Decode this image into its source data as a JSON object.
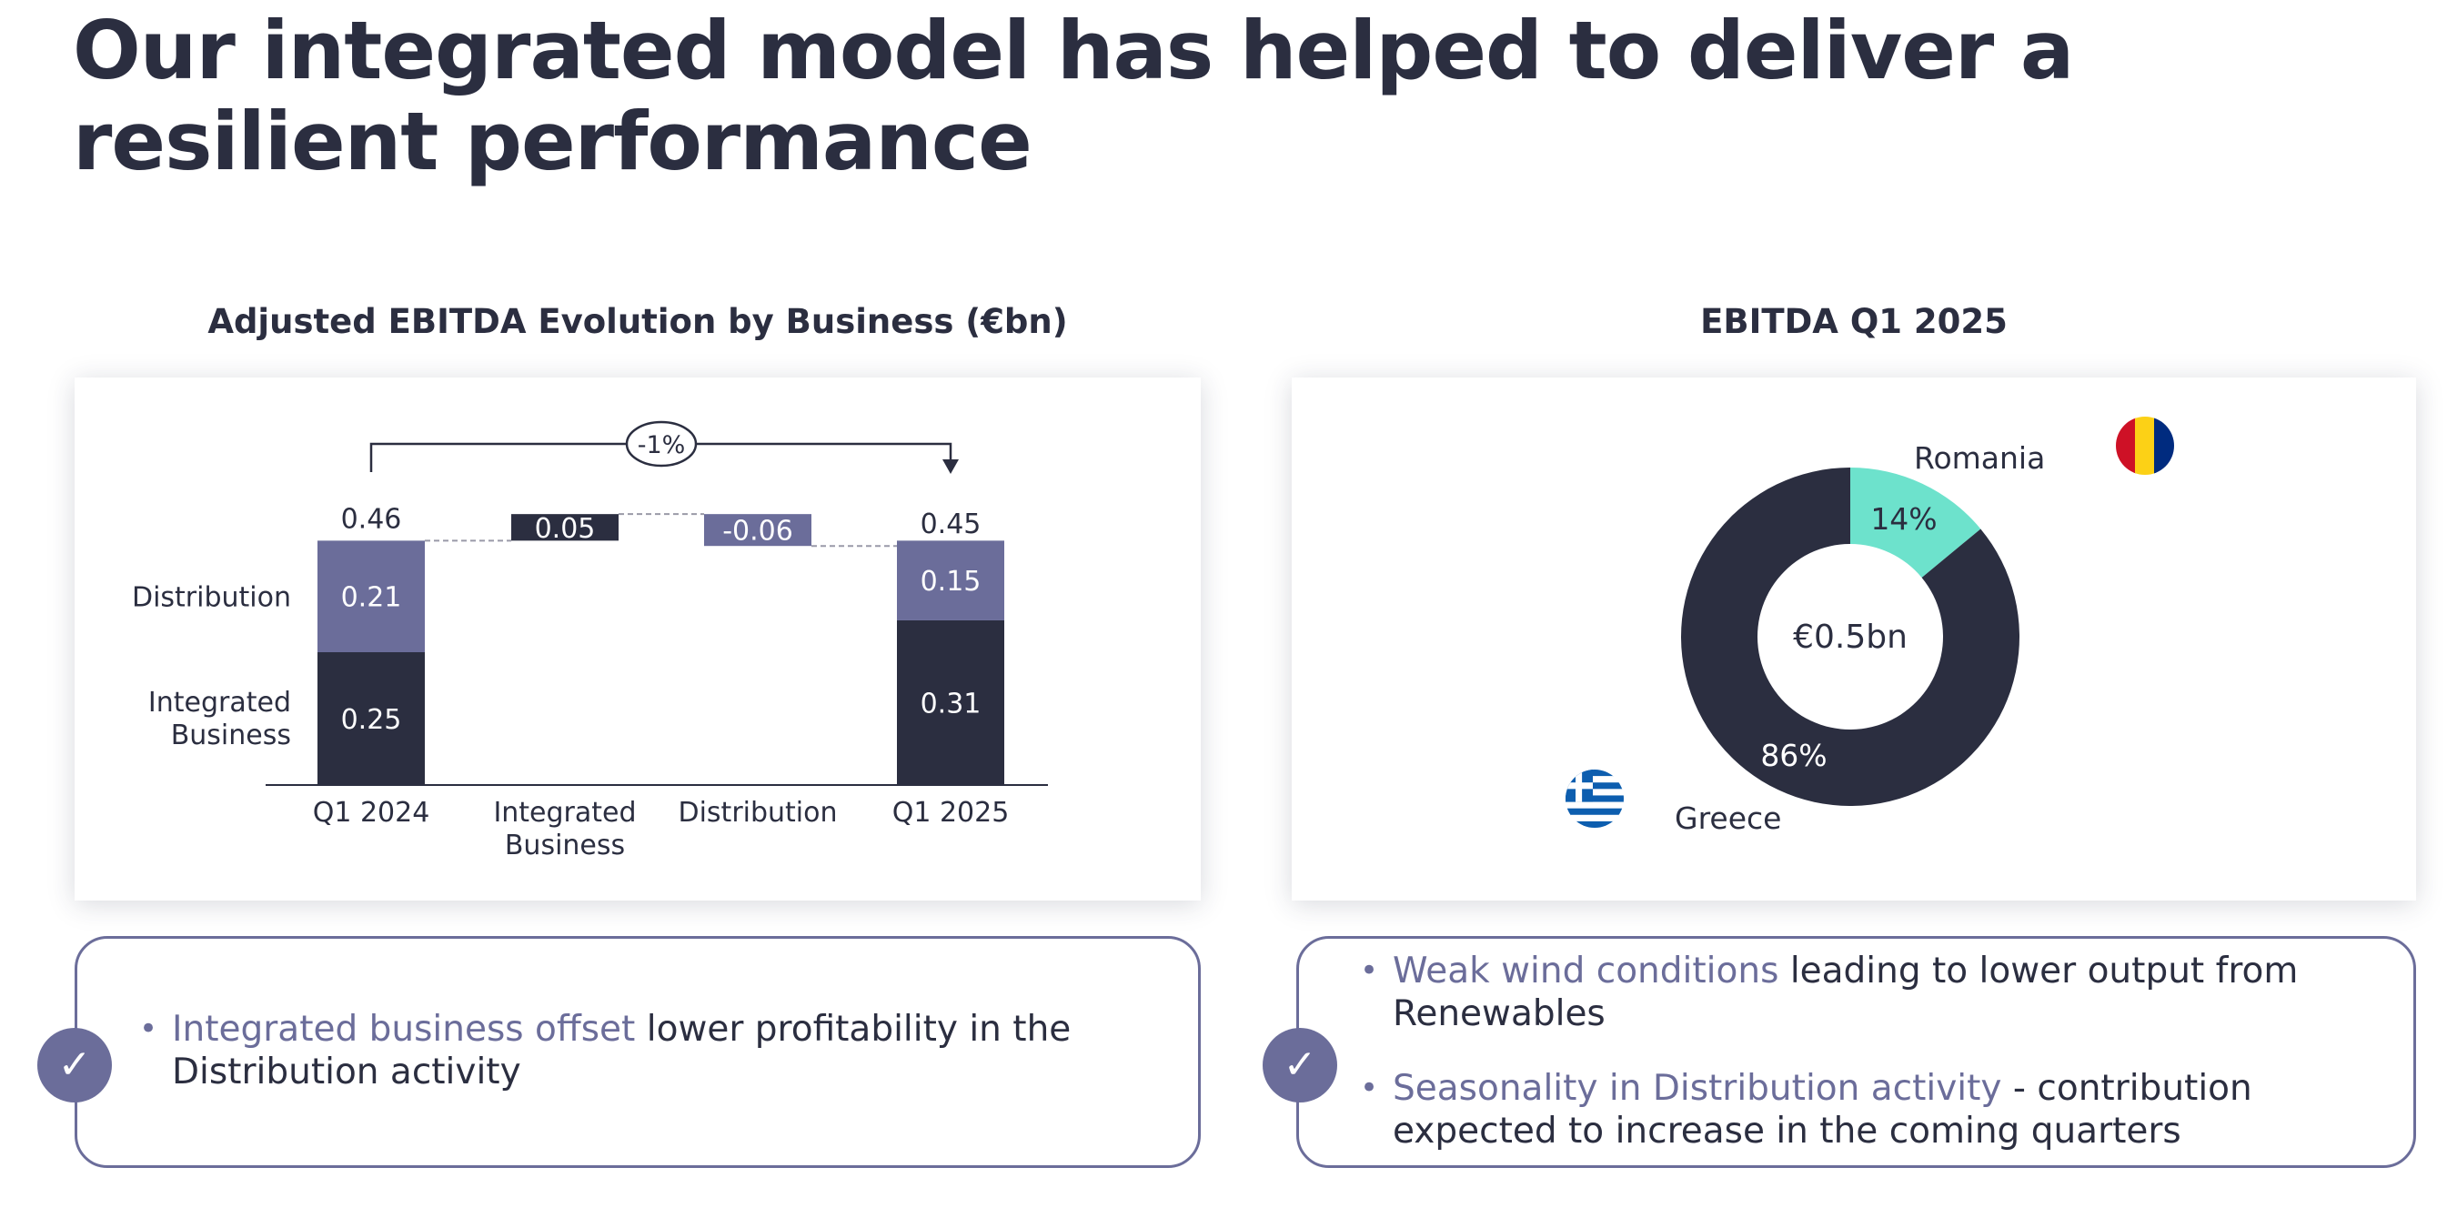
{
  "page": {
    "title": "Our integrated model has helped to deliver a resilient performance"
  },
  "left_section": {
    "title": "Adjusted EBITDA Evolution by Business (€bn)",
    "note": {
      "highlight": "Integrated business offset",
      "rest": "lower profitability in the Distribution activity"
    }
  },
  "right_section": {
    "title": "EBITDA Q1 2025",
    "notes": [
      {
        "highlight": "Weak wind conditions",
        "rest": "leading to lower output from Renewables"
      },
      {
        "highlight": "Seasonality in Distribution activity",
        "rest": "- contribution expected to increase in the coming quarters"
      }
    ]
  },
  "colors": {
    "dark_navy": "#2b2e40",
    "slate_purple": "#6b6d9a",
    "teal": "#6de2cc",
    "romania_blue": "#002b7f",
    "romania_yellow": "#fcd116",
    "romania_red": "#ce1126",
    "greece_blue": "#0d5eaf"
  },
  "icons": {
    "check": "check-icon",
    "romania_flag": "romania-flag-icon",
    "greece_flag": "greece-flag-icon"
  },
  "chart_data": [
    {
      "type": "bar",
      "subtype": "waterfall-stacked",
      "title": "Adjusted EBITDA Evolution by Business (€bn)",
      "categories": [
        "Q1 2024",
        "Integrated Business",
        "Distribution",
        "Q1 2025"
      ],
      "series": [
        {
          "name": "Integrated Business",
          "values": [
            0.25,
            null,
            null,
            0.31
          ]
        },
        {
          "name": "Distribution",
          "values": [
            0.21,
            null,
            null,
            0.15
          ]
        }
      ],
      "totals": [
        0.46,
        null,
        null,
        0.45
      ],
      "deltas": [
        {
          "category": "Integrated Business",
          "value": 0.05,
          "label": "0.05"
        },
        {
          "category": "Distribution",
          "value": -0.06,
          "label": "-0.06"
        }
      ],
      "change_label": "-1%",
      "legend_labels": [
        "Distribution",
        "Integrated Business"
      ],
      "ylim": [
        0,
        0.5
      ]
    },
    {
      "type": "pie",
      "subtype": "donut",
      "title": "EBITDA Q1 2025",
      "center_label": "€0.5bn",
      "slices": [
        {
          "name": "Romania",
          "value": 14,
          "label": "14%"
        },
        {
          "name": "Greece",
          "value": 86,
          "label": "86%"
        }
      ]
    }
  ]
}
